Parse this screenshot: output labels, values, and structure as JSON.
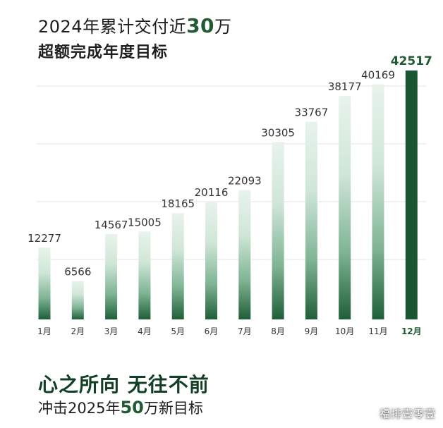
{
  "header": {
    "line1_prefix": "2024年累计交付近",
    "line1_number": "30",
    "line1_suffix": "万",
    "line2": "超额完成年度目标"
  },
  "footer": {
    "slogan": "心之所向 无往不前",
    "goal_prefix": "冲击2025年",
    "goal_number": "50",
    "goal_suffix": "万新目标"
  },
  "watermark": "福排壹零壹",
  "colors": {
    "bar_top": "#e8f3ec",
    "bar_bottom": "#1e5f38",
    "highlight_bar": "#1b5632",
    "highlight_text": "#1f5a33",
    "label_text": "#333333",
    "grid": "#e3e3e3"
  },
  "chart_data": {
    "type": "bar",
    "categories": [
      "1月",
      "2月",
      "3月",
      "4月",
      "5月",
      "6月",
      "7月",
      "8月",
      "9月",
      "10月",
      "11月",
      "12月"
    ],
    "values": [
      12277,
      6566,
      14567,
      15005,
      18165,
      20116,
      22093,
      30305,
      33767,
      38177,
      40169,
      42517
    ],
    "value_labels": [
      "12277",
      "6566",
      "14567",
      "15005",
      "18165",
      "20116",
      "22093",
      "30305",
      "33767",
      "38177",
      "40169",
      "42517"
    ],
    "highlight_index": 11,
    "ylim": [
      0,
      43000
    ],
    "grid": true
  }
}
